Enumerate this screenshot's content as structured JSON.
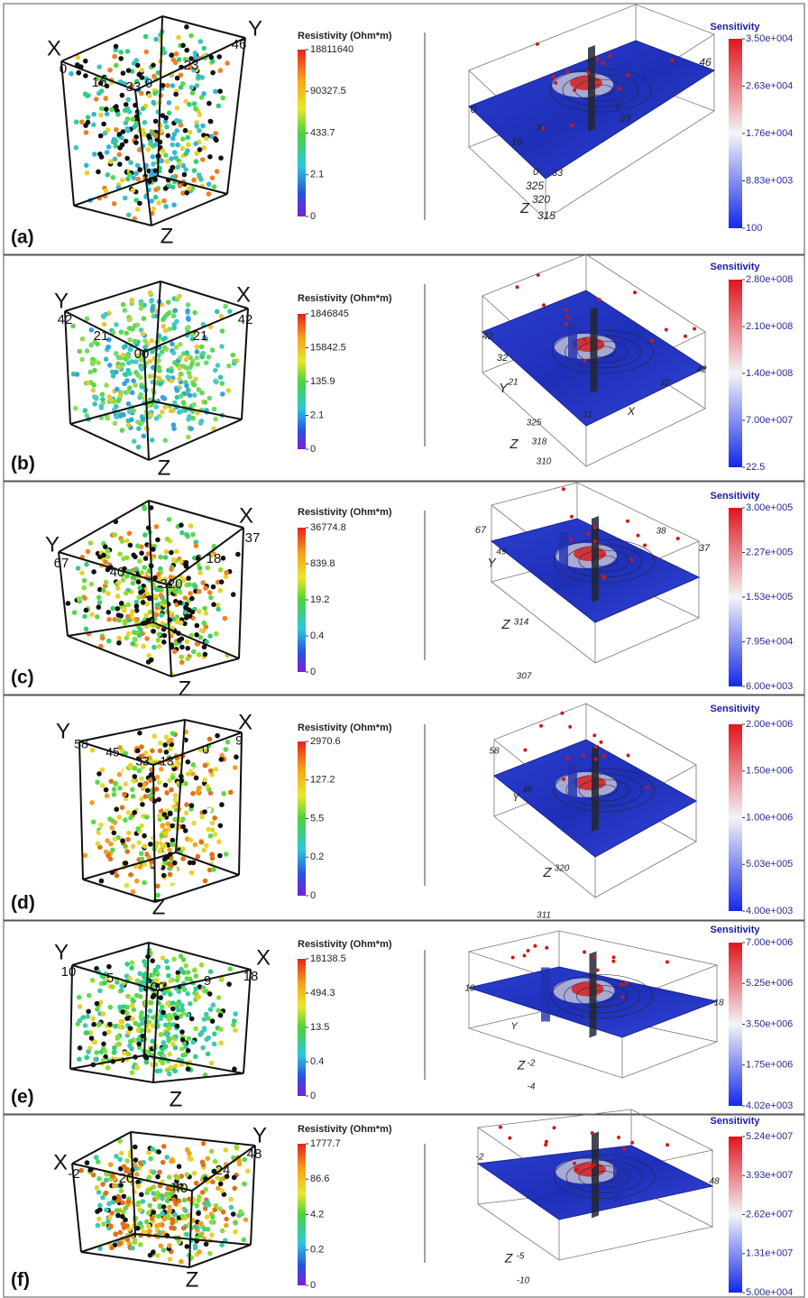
{
  "panels": [
    {
      "label": "(a)",
      "cube_labels": [
        "X",
        "Y",
        "0",
        "46",
        "23",
        "16",
        "33",
        "0",
        "Z"
      ],
      "resistivity": {
        "title": "Resistivity (Ohm*m)",
        "ticks": [
          "18811640",
          "90327.5",
          "433.7",
          "2.1",
          "0"
        ]
      },
      "sensitivity": {
        "title": "Sensitivity",
        "ticks": [
          "3.50e+004",
          "2.63e+004",
          "1.76e+004",
          "8.83e+003",
          "100"
        ]
      },
      "slice_labels": [
        "0",
        "46",
        "16",
        "X",
        "Y",
        "23",
        "0",
        "33",
        "325",
        "320",
        "Z",
        "315"
      ]
    },
    {
      "label": "(b)",
      "cube_labels": [
        "Y",
        "42",
        "X",
        "42",
        "21",
        "21",
        "00",
        "Z"
      ],
      "resistivity": {
        "title": "Resistivity (Ohm*m)",
        "ticks": [
          "1846845",
          "15842.5",
          "135.9",
          "2.1",
          "0"
        ]
      },
      "sensitivity": {
        "title": "Sensitivity",
        "ticks": [
          "2.80e+008",
          "2.10e+008",
          "1.40e+008",
          "7.00e+007",
          "22.5"
        ]
      },
      "slice_labels": [
        "42",
        "32",
        "Y",
        "21",
        "11",
        "X",
        "32",
        "42",
        "325",
        "Z",
        "318",
        "310"
      ]
    },
    {
      "label": "(c)",
      "cube_labels": [
        "X",
        "37",
        "Y",
        "67",
        "40",
        "18",
        "320",
        "Z"
      ],
      "resistivity": {
        "title": "Resistivity (Ohm*m)",
        "ticks": [
          "36774.8",
          "839.8",
          "19.2",
          "0.4",
          "0"
        ]
      },
      "sensitivity": {
        "title": "Sensitivity",
        "ticks": [
          "3.00e+005",
          "2.27e+005",
          "1.53e+005",
          "7.95e+004",
          "6.00e+003"
        ]
      },
      "slice_labels": [
        "67",
        "49",
        "Y",
        "38",
        "37",
        "Z",
        "314",
        "307"
      ]
    },
    {
      "label": "(d)",
      "cube_labels": [
        "Y",
        "X",
        "58",
        "9",
        "45",
        "33",
        "13",
        "0",
        "Z"
      ],
      "resistivity": {
        "title": "Resistivity (Ohm*m)",
        "ticks": [
          "2970.6",
          "127.2",
          "5.5",
          "0.2",
          "0"
        ]
      },
      "sensitivity": {
        "title": "Sensitivity",
        "ticks": [
          "2.00e+006",
          "1.50e+006",
          "1.00e+006",
          "5.03e+005",
          "4.00e+003"
        ]
      },
      "slice_labels": [
        "58",
        "Y",
        "45",
        "Z",
        "320",
        "311"
      ]
    },
    {
      "label": "(e)",
      "cube_labels": [
        "Y",
        "X",
        "10",
        "18",
        "5",
        "9",
        "00",
        "Z"
      ],
      "resistivity": {
        "title": "Resistivity (Ohm*m)",
        "ticks": [
          "18138.5",
          "494.3",
          "13.5",
          "0.4",
          "0"
        ]
      },
      "sensitivity": {
        "title": "Sensitivity",
        "ticks": [
          "7.00e+006",
          "5.25e+006",
          "3.50e+006",
          "1.75e+006",
          "4.02e+003"
        ]
      },
      "slice_labels": [
        "10",
        "Y",
        "18",
        "Z",
        "-2",
        "-4"
      ]
    },
    {
      "label": "(f)",
      "cube_labels": [
        "X",
        "Y",
        "-2",
        "48",
        "20",
        "40",
        "24",
        "Z"
      ],
      "resistivity": {
        "title": "Resistivity (Ohm*m)",
        "ticks": [
          "1777.7",
          "86.6",
          "4.2",
          "0.2",
          "0"
        ]
      },
      "sensitivity": {
        "title": "Sensitivity",
        "ticks": [
          "5.24e+007",
          "3.93e+007",
          "2.62e+007",
          "1.31e+007",
          "5.00e+004"
        ]
      },
      "slice_labels": [
        "-2",
        "48",
        "Z",
        "-5",
        "-10"
      ]
    }
  ]
}
